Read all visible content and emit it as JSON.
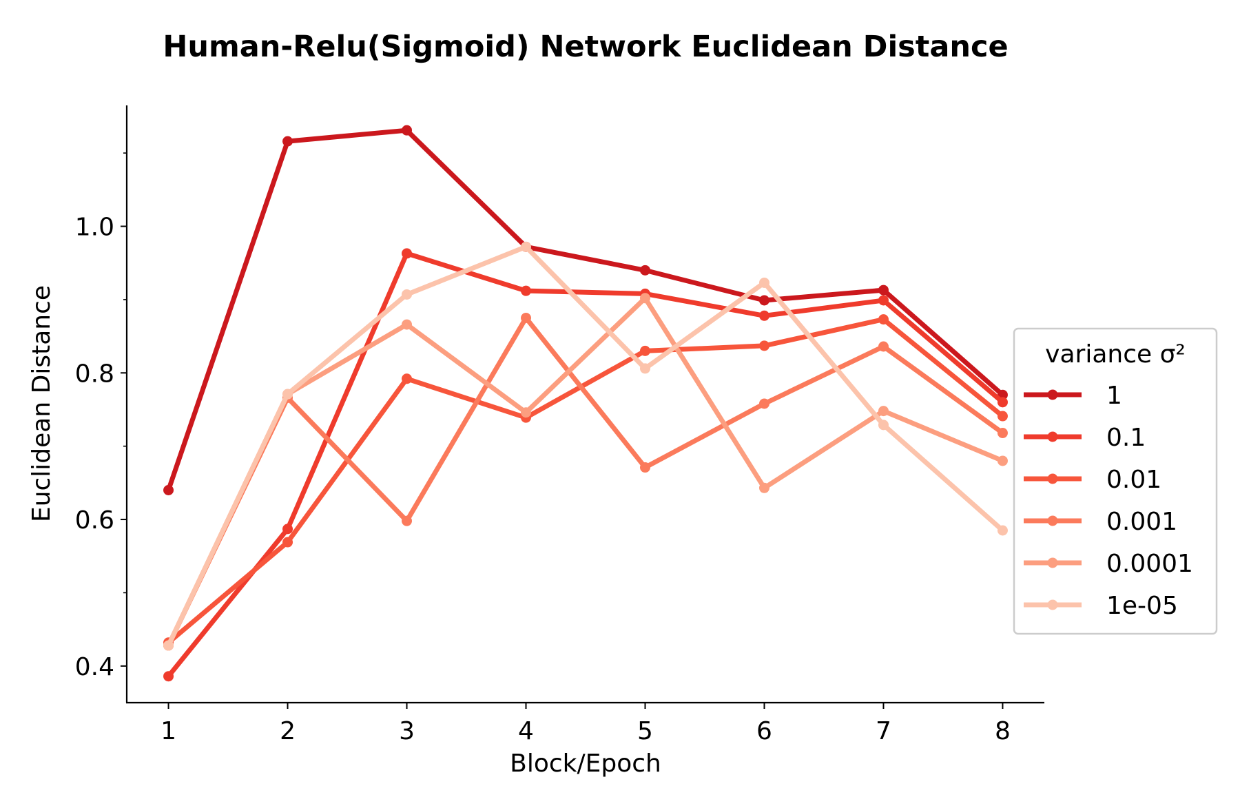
{
  "chart_data": {
    "type": "line",
    "title": "Human-Relu(Sigmoid) Network Euclidean Distance",
    "xlabel": "Block/Epoch",
    "ylabel": "Euclidean Distance",
    "x": [
      1,
      2,
      3,
      4,
      5,
      6,
      7,
      8
    ],
    "xlim": [
      0.65,
      8.35
    ],
    "ylim": [
      0.35,
      1.165
    ],
    "yticks_major": [
      0.4,
      0.6,
      0.8,
      1.0
    ],
    "yticks_major_labels": [
      "0.4",
      "0.6",
      "0.8",
      "1.0"
    ],
    "yticks_minor": [
      0.5,
      0.7,
      0.9,
      1.1
    ],
    "xticks_labels": [
      "1",
      "2",
      "3",
      "4",
      "5",
      "6",
      "7",
      "8"
    ],
    "grid": false,
    "legend": {
      "title": "variance σ²",
      "placement": "center-right"
    },
    "series": [
      {
        "name": "1",
        "color": "#cb181d",
        "values": [
          0.64,
          1.116,
          1.131,
          0.972,
          0.94,
          0.899,
          0.913,
          0.77
        ]
      },
      {
        "name": "0.1",
        "color": "#ef3b2c",
        "values": [
          0.386,
          0.587,
          0.963,
          0.912,
          0.908,
          0.878,
          0.899,
          0.76
        ]
      },
      {
        "name": "0.01",
        "color": "#f7553b",
        "values": [
          0.432,
          0.569,
          0.792,
          0.739,
          0.83,
          0.837,
          0.873,
          0.741
        ]
      },
      {
        "name": "0.001",
        "color": "#fb7a5b",
        "values": [
          0.428,
          0.766,
          0.598,
          0.875,
          0.671,
          0.758,
          0.836,
          0.718
        ]
      },
      {
        "name": "0.0001",
        "color": "#fc9e7f",
        "values": [
          0.428,
          0.771,
          0.866,
          0.746,
          0.902,
          0.643,
          0.748,
          0.68
        ]
      },
      {
        "name": "1e-05",
        "color": "#fcc3ab",
        "values": [
          0.428,
          0.771,
          0.907,
          0.972,
          0.806,
          0.923,
          0.729,
          0.585
        ]
      }
    ]
  }
}
